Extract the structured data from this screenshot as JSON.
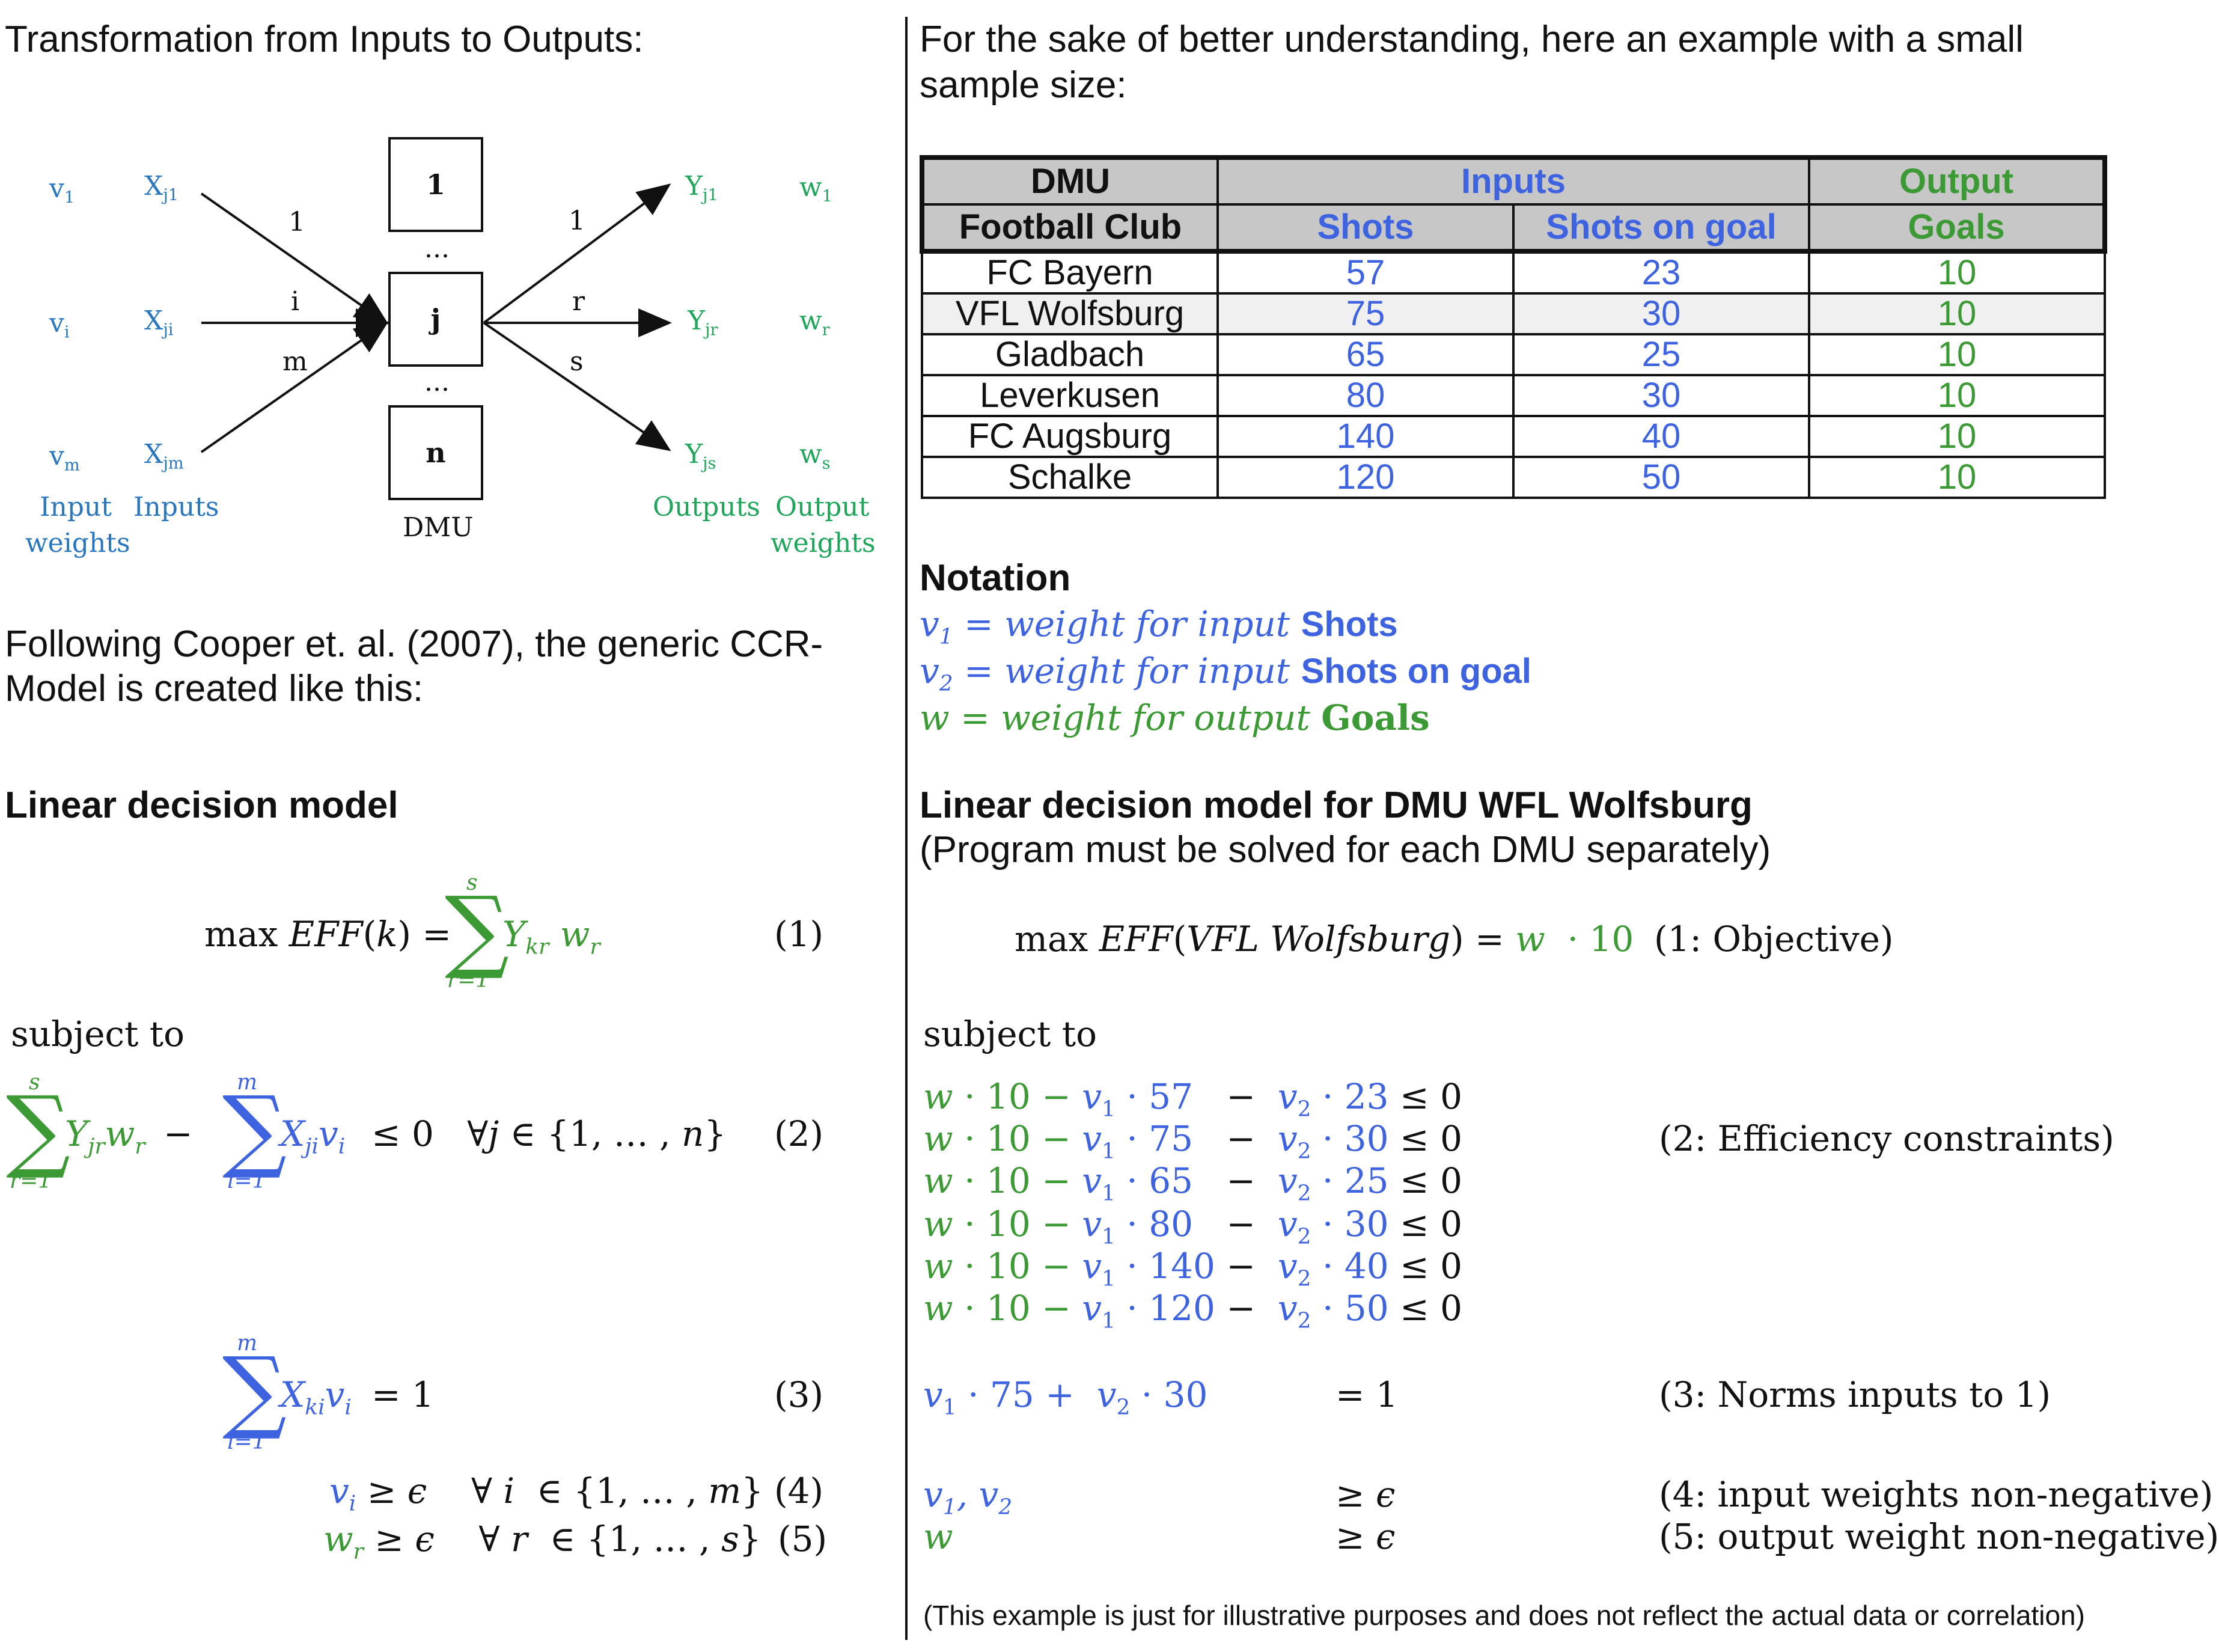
{
  "left": {
    "intro_title": "Transformation from Inputs to Outputs:",
    "diagram": {
      "input_weights": [
        "v",
        "v",
        "v"
      ],
      "input_weight_subs": [
        "1",
        "i",
        "m"
      ],
      "inputs": [
        "X",
        "X",
        "X"
      ],
      "input_subs": [
        "j1",
        "ji",
        "jm"
      ],
      "edge_in_labels": [
        "1",
        "i",
        "m"
      ],
      "edge_out_labels": [
        "1",
        "r",
        "s"
      ],
      "dmu_boxes": [
        "1",
        "j",
        "n"
      ],
      "ellipsis": "...",
      "dmu_label": "DMU",
      "outputs": [
        "Y",
        "Y",
        "Y"
      ],
      "output_subs": [
        "j1",
        "jr",
        "js"
      ],
      "output_weights": [
        "w",
        "w",
        "w"
      ],
      "output_weight_subs": [
        "1",
        "r",
        "s"
      ],
      "caption_input_weights": [
        "Input",
        "weights"
      ],
      "caption_inputs": "Inputs",
      "caption_outputs": "Outputs",
      "caption_output_weights": [
        "Output",
        "weights"
      ]
    },
    "following_text": [
      "Following Cooper et. al. (2007), the generic CCR-",
      "Model is created like this:"
    ],
    "model_heading": "Linear decision model",
    "eq1_num": "(1)",
    "subject_to": "subject to",
    "eq2_num": "(2)",
    "eq3_num": "(3)",
    "eq4_num": "(4)",
    "eq5_num": "(5)"
  },
  "right": {
    "intro": [
      "For the sake of better understanding, here an example with a small",
      "sample size:"
    ],
    "table": {
      "header1": [
        "DMU",
        "Inputs",
        "Output"
      ],
      "header2": [
        "Football Club",
        "Shots",
        "Shots on goal",
        "Goals"
      ],
      "rows": [
        [
          "FC Bayern",
          "57",
          "23",
          "10"
        ],
        [
          "VFL Wolfsburg",
          "75",
          "30",
          "10"
        ],
        [
          "Gladbach",
          "65",
          "25",
          "10"
        ],
        [
          "Leverkusen",
          "80",
          "30",
          "10"
        ],
        [
          "FC Augsburg",
          "140",
          "40",
          "10"
        ],
        [
          "Schalke",
          "120",
          "50",
          "10"
        ]
      ]
    },
    "notation_heading": "Notation",
    "notation": [
      {
        "lhs": "v",
        "sub": "1",
        "text": " = weight for input ",
        "bold": "Shots"
      },
      {
        "lhs": "v",
        "sub": "2",
        "text": " = weight for input ",
        "bold": "Shots on goal"
      },
      {
        "lhs": "w",
        "sub": "",
        "text": "  = weight for output ",
        "bold": "Goals"
      }
    ],
    "model_heading": "Linear decision model for DMU WFL Wolfsburg",
    "model_sub": "(Program must be solved for each DMU separately)",
    "objective_label": "(1: Objective)",
    "subject_to": "subject to",
    "constraints": [
      [
        "57",
        "23"
      ],
      [
        "75",
        "30"
      ],
      [
        "65",
        "25"
      ],
      [
        "80",
        "30"
      ],
      [
        "140",
        "40"
      ],
      [
        "120",
        "50"
      ]
    ],
    "eff_label": "(2: Efficiency constraints)",
    "norm_label": "(3: Norms inputs to 1)",
    "nonneg_in_label": "(4: input weights non-negative)",
    "nonneg_out_label": "(5: output weight non-negative)",
    "footnote": "(This example is just for illustrative purposes and does not reflect the actual data or correlation)"
  },
  "colors": {
    "input_blue": "#3d63e0",
    "output_green": "#3c9a34",
    "diagram_blue": "#2a77c0",
    "diagram_green": "#1fa65a",
    "header_gray": "#c7c7c7"
  }
}
